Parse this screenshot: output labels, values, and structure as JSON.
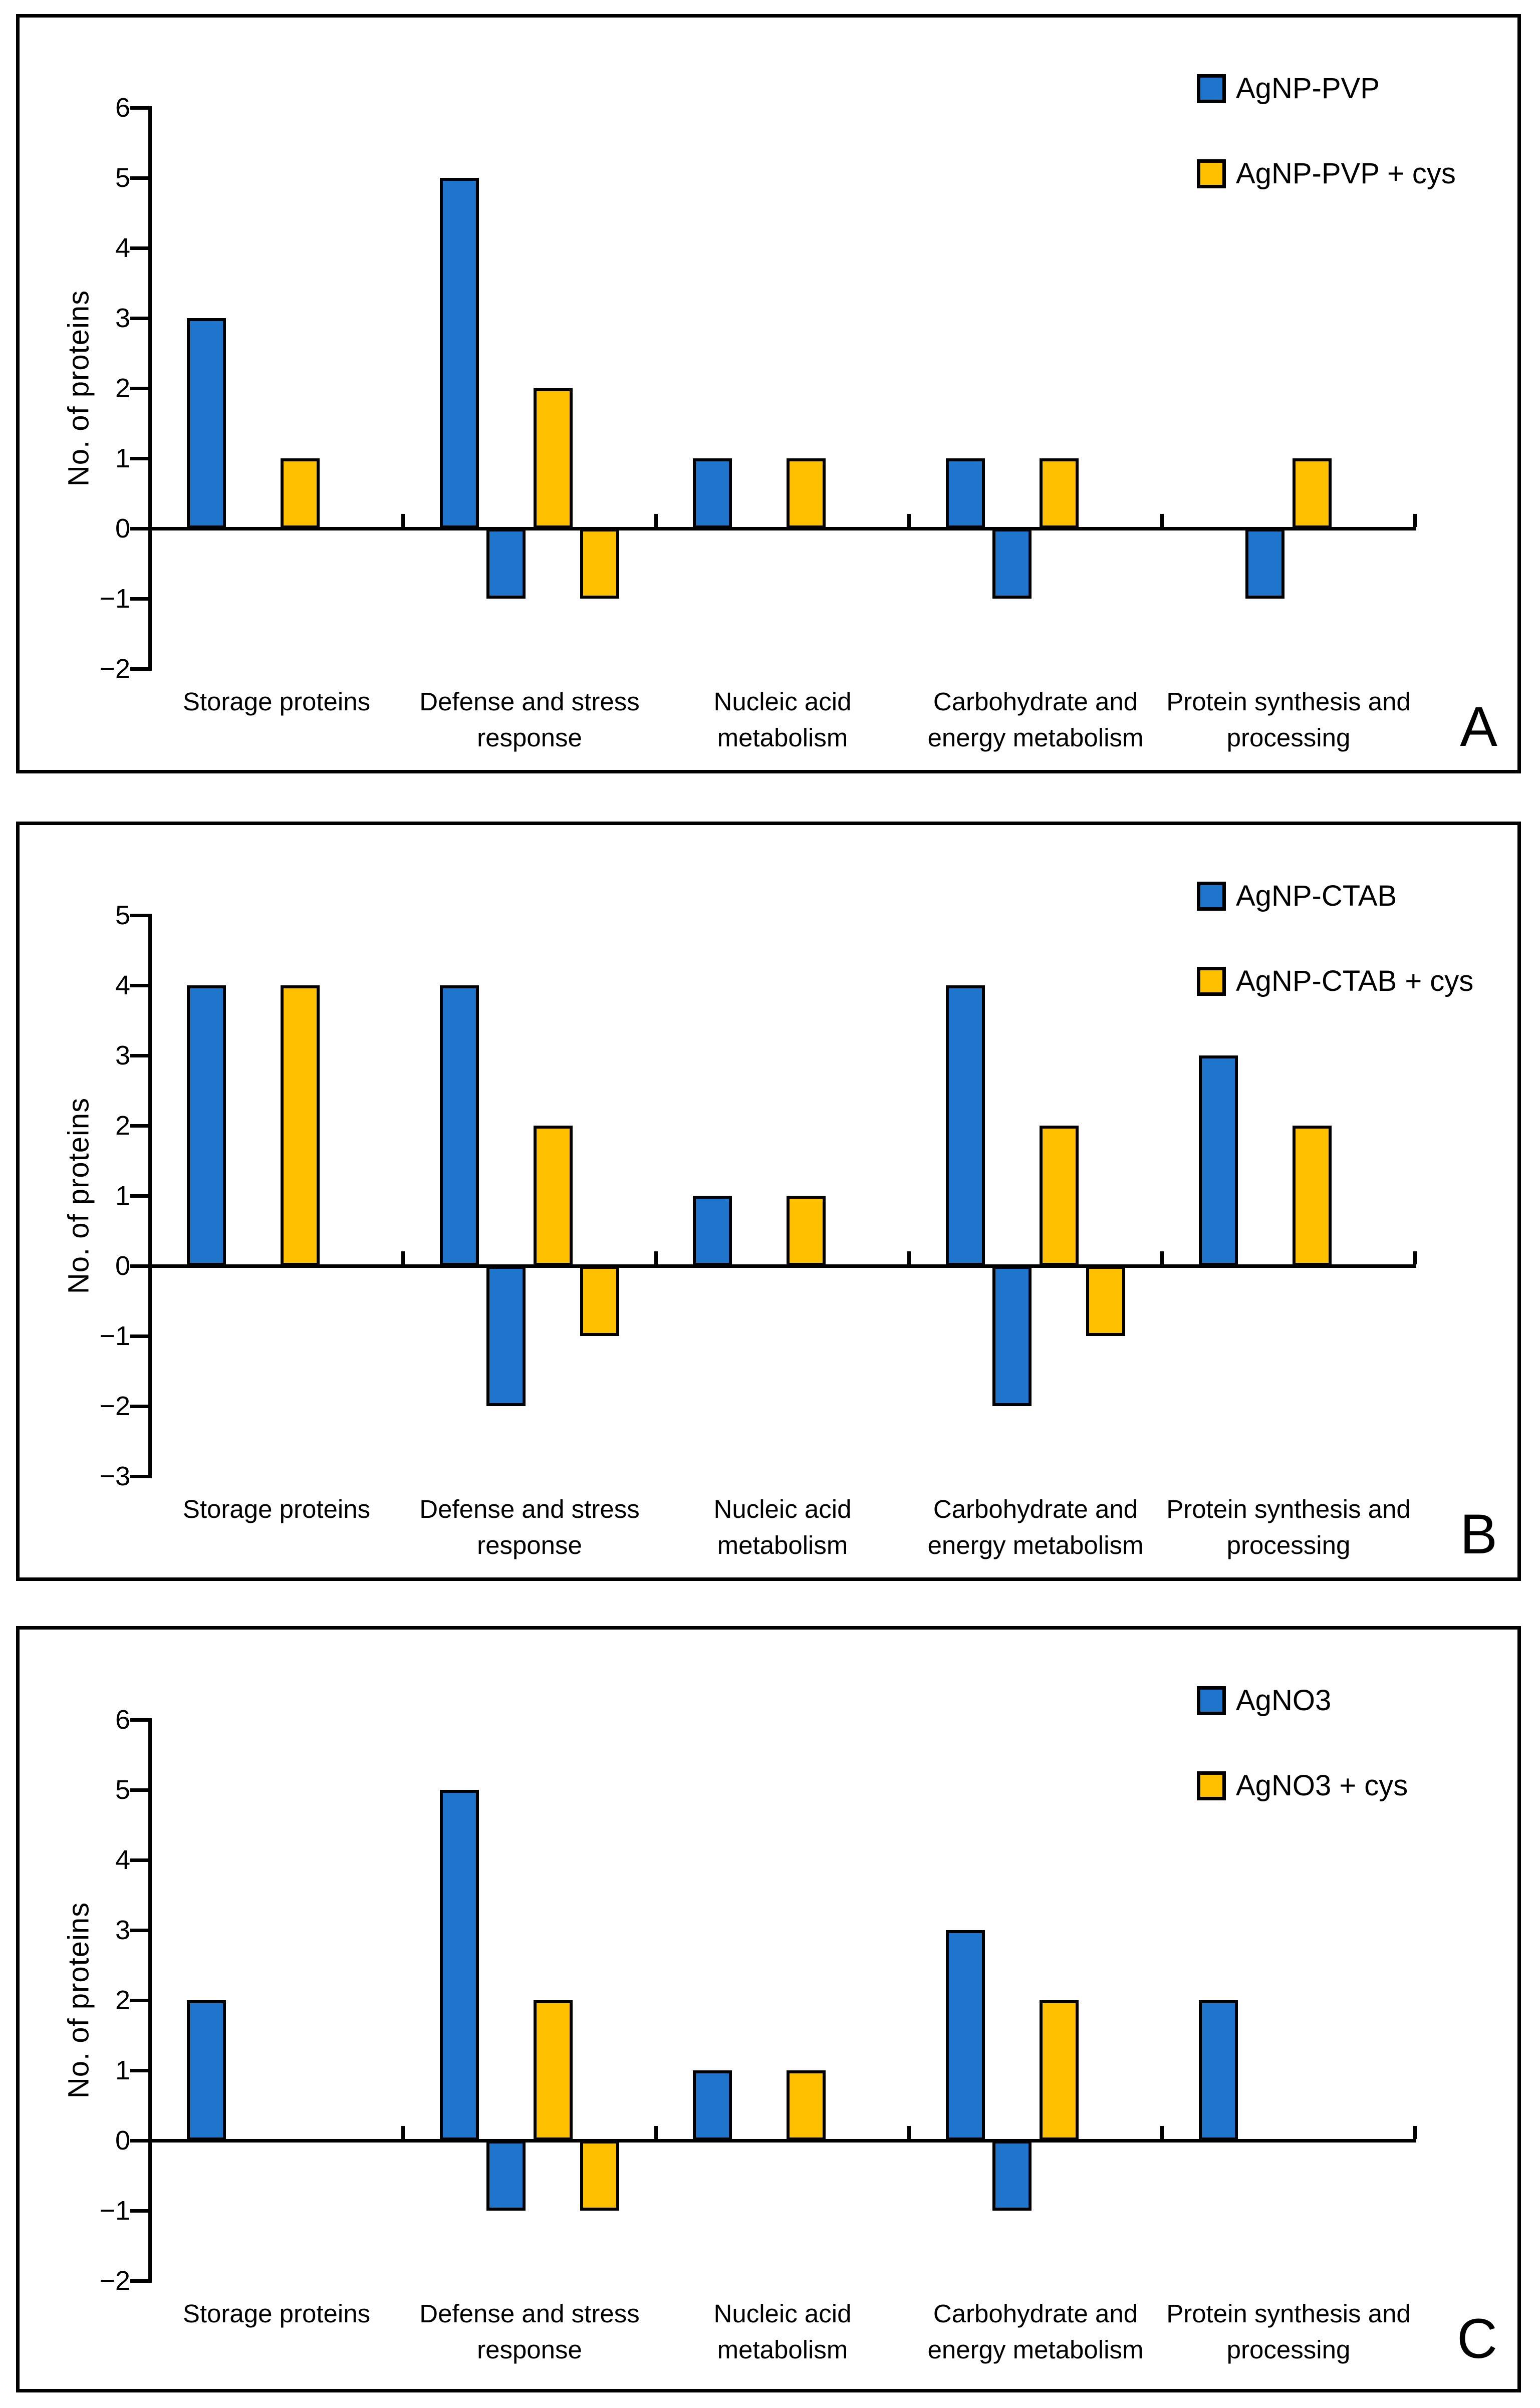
{
  "figure": {
    "background": "#ffffff",
    "border_color": "#000000",
    "bar_outline_color": "#000000"
  },
  "chart_data": [
    {
      "type": "bar",
      "panel_letter": "A",
      "title": "",
      "xlabel": "",
      "ylabel": "No. of proteins",
      "ylim": [
        -2,
        6
      ],
      "yticks": [
        6,
        5,
        4,
        3,
        2,
        1,
        0,
        -1,
        -2
      ],
      "grid": false,
      "legend_position": "top-right",
      "categories": [
        "Storage proteins",
        "Defense and stress response",
        "Nucleic acid metabolism",
        "Carbohydrate and energy metabolism",
        "Protein synthesis and processing"
      ],
      "series": [
        {
          "name": "AgNP-PVP",
          "color": "#1F74CC",
          "up": [
            3,
            5,
            1,
            1,
            0
          ],
          "down": [
            0,
            -1,
            0,
            -1,
            -1
          ]
        },
        {
          "name": "AgNP-PVP + cys",
          "color": "#FFC000",
          "up": [
            1,
            2,
            1,
            1,
            1
          ],
          "down": [
            0,
            -1,
            0,
            0,
            0
          ]
        }
      ]
    },
    {
      "type": "bar",
      "panel_letter": "B",
      "title": "",
      "xlabel": "",
      "ylabel": "No. of proteins",
      "ylim": [
        -3,
        5
      ],
      "yticks": [
        5,
        4,
        3,
        2,
        1,
        0,
        -1,
        -2,
        -3
      ],
      "grid": false,
      "legend_position": "top-right",
      "categories": [
        "Storage proteins",
        "Defense and stress response",
        "Nucleic acid metabolism",
        "Carbohydrate and energy metabolism",
        "Protein synthesis and processing"
      ],
      "series": [
        {
          "name": "AgNP-CTAB",
          "color": "#1F74CC",
          "up": [
            4,
            4,
            1,
            4,
            3
          ],
          "down": [
            0,
            -2,
            0,
            -2,
            0
          ]
        },
        {
          "name": "AgNP-CTAB + cys",
          "color": "#FFC000",
          "up": [
            4,
            2,
            1,
            2,
            2
          ],
          "down": [
            0,
            -1,
            0,
            -1,
            0
          ]
        }
      ]
    },
    {
      "type": "bar",
      "panel_letter": "C",
      "title": "",
      "xlabel": "",
      "ylabel": "No. of proteins",
      "ylim": [
        -2,
        6
      ],
      "yticks": [
        6,
        5,
        4,
        3,
        2,
        1,
        0,
        -1,
        -2
      ],
      "grid": false,
      "legend_position": "top-right",
      "categories": [
        "Storage proteins",
        "Defense and stress response",
        "Nucleic acid metabolism",
        "Carbohydrate and energy metabolism",
        "Protein synthesis and processing"
      ],
      "series": [
        {
          "name": "AgNO3",
          "color": "#1F74CC",
          "up": [
            2,
            5,
            1,
            3,
            2
          ],
          "down": [
            0,
            -1,
            0,
            -1,
            0
          ]
        },
        {
          "name": "AgNO3 + cys",
          "color": "#FFC000",
          "up": [
            0,
            2,
            1,
            2,
            0
          ],
          "down": [
            0,
            -1,
            0,
            0,
            0
          ]
        }
      ]
    }
  ]
}
